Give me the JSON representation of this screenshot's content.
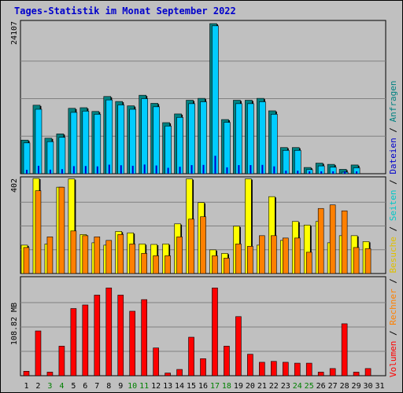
{
  "title": "Tages-Statistik im Monat September 2022",
  "colors": {
    "background": "#c0c0c0",
    "title": "#0000cc",
    "anfragen": "#008080",
    "dateien": "#00ccff",
    "kbyte_inner": "#0000cc",
    "seiten": "#00c8a0",
    "besuche": "#ffff00",
    "rechner": "#ff8000",
    "volumen": "#ff0000",
    "weekend_label": "#008000",
    "weekday_label": "#000000"
  },
  "chart_data": [
    {
      "type": "bar",
      "panel": "top",
      "ymax_label": "24107",
      "ylim": [
        0,
        24107
      ],
      "x": [
        1,
        2,
        3,
        4,
        5,
        6,
        7,
        8,
        9,
        10,
        11,
        12,
        13,
        14,
        15,
        16,
        17,
        18,
        19,
        20,
        21,
        22,
        23,
        24,
        25,
        26,
        27,
        28,
        29,
        30,
        31
      ],
      "series": [
        {
          "name": "Anfragen",
          "values": [
            5400,
            11000,
            5700,
            6400,
            10500,
            10600,
            10000,
            12400,
            11600,
            10900,
            12600,
            11300,
            8200,
            9600,
            11800,
            12100,
            24107,
            8700,
            11800,
            11800,
            12100,
            10100,
            4200,
            4200,
            1000,
            1700,
            1500,
            700,
            1400,
            0,
            0
          ]
        },
        {
          "name": "Dateien",
          "values": [
            5200,
            10600,
            5400,
            6100,
            10100,
            10300,
            9800,
            12100,
            11300,
            10600,
            12300,
            11000,
            7900,
            9300,
            11500,
            11800,
            24000,
            8500,
            11500,
            11500,
            11800,
            9800,
            4000,
            4000,
            900,
            1500,
            1300,
            500,
            1200,
            0,
            0
          ]
        }
      ]
    },
    {
      "type": "bar",
      "panel": "middle",
      "ymax_label": "402",
      "ylim": [
        0,
        402
      ],
      "x": [
        1,
        2,
        3,
        4,
        5,
        6,
        7,
        8,
        9,
        10,
        11,
        12,
        13,
        14,
        15,
        16,
        17,
        18,
        19,
        20,
        21,
        22,
        23,
        24,
        25,
        26,
        27,
        28,
        29,
        30,
        31
      ],
      "series": [
        {
          "name": "Seiten",
          "values": [
            0,
            0,
            0,
            0,
            0,
            0,
            0,
            0,
            0,
            0,
            0,
            0,
            0,
            0,
            0,
            0,
            0,
            0,
            0,
            0,
            0,
            0,
            0,
            0,
            0,
            0,
            0,
            0,
            0,
            0,
            0
          ]
        },
        {
          "name": "Besuche",
          "values": [
            120,
            402,
            125,
            365,
            400,
            165,
            130,
            120,
            178,
            172,
            125,
            123,
            125,
            210,
            400,
            300,
            100,
            85,
            200,
            400,
            120,
            325,
            140,
            220,
            205,
            220,
            130,
            160,
            160,
            135,
            0
          ]
        },
        {
          "name": "Rechner",
          "values": [
            110,
            350,
            155,
            365,
            180,
            160,
            155,
            140,
            165,
            125,
            85,
            75,
            75,
            155,
            230,
            240,
            75,
            65,
            125,
            115,
            160,
            160,
            150,
            150,
            90,
            275,
            290,
            265,
            110,
            105,
            0
          ]
        }
      ]
    },
    {
      "type": "bar",
      "panel": "bottom",
      "ymax_label": "108.82 MB",
      "ylim": [
        0,
        108.82
      ],
      "x": [
        1,
        2,
        3,
        4,
        5,
        6,
        7,
        8,
        9,
        10,
        11,
        12,
        13,
        14,
        15,
        16,
        17,
        18,
        19,
        20,
        21,
        22,
        23,
        24,
        25,
        26,
        27,
        28,
        29,
        30,
        31
      ],
      "series": [
        {
          "name": "Volumen",
          "values": [
            5,
            50,
            4,
            33,
            75,
            79,
            90,
            98,
            90,
            72,
            85,
            31,
            3,
            7,
            43,
            19,
            98,
            33,
            66,
            24,
            15,
            16,
            15,
            14,
            14,
            4,
            8,
            58,
            4,
            8,
            0
          ]
        }
      ]
    }
  ],
  "x_axis": {
    "labels": [
      "1",
      "2",
      "3",
      "4",
      "5",
      "6",
      "7",
      "8",
      "9",
      "10",
      "11",
      "12",
      "13",
      "14",
      "15",
      "16",
      "17",
      "18",
      "19",
      "20",
      "21",
      "22",
      "23",
      "24",
      "25",
      "26",
      "27",
      "28",
      "29",
      "30",
      "31"
    ],
    "weekend": [
      3,
      4,
      10,
      11,
      17,
      18,
      24,
      25
    ]
  },
  "right_legend": [
    {
      "text": "Volumen",
      "color": "#ff0000"
    },
    {
      "text": " / ",
      "color": "#000000"
    },
    {
      "text": "Rechner",
      "color": "#ff8000"
    },
    {
      "text": " / ",
      "color": "#000000"
    },
    {
      "text": "Besuche",
      "color": "#e0c000"
    },
    {
      "text": " / ",
      "color": "#000000"
    },
    {
      "text": "Seiten",
      "color": "#00c8c8"
    },
    {
      "text": " / ",
      "color": "#000000"
    },
    {
      "text": "Dateien",
      "color": "#0000cc"
    },
    {
      "text": " / ",
      "color": "#000000"
    },
    {
      "text": "Anfragen",
      "color": "#008080"
    }
  ]
}
